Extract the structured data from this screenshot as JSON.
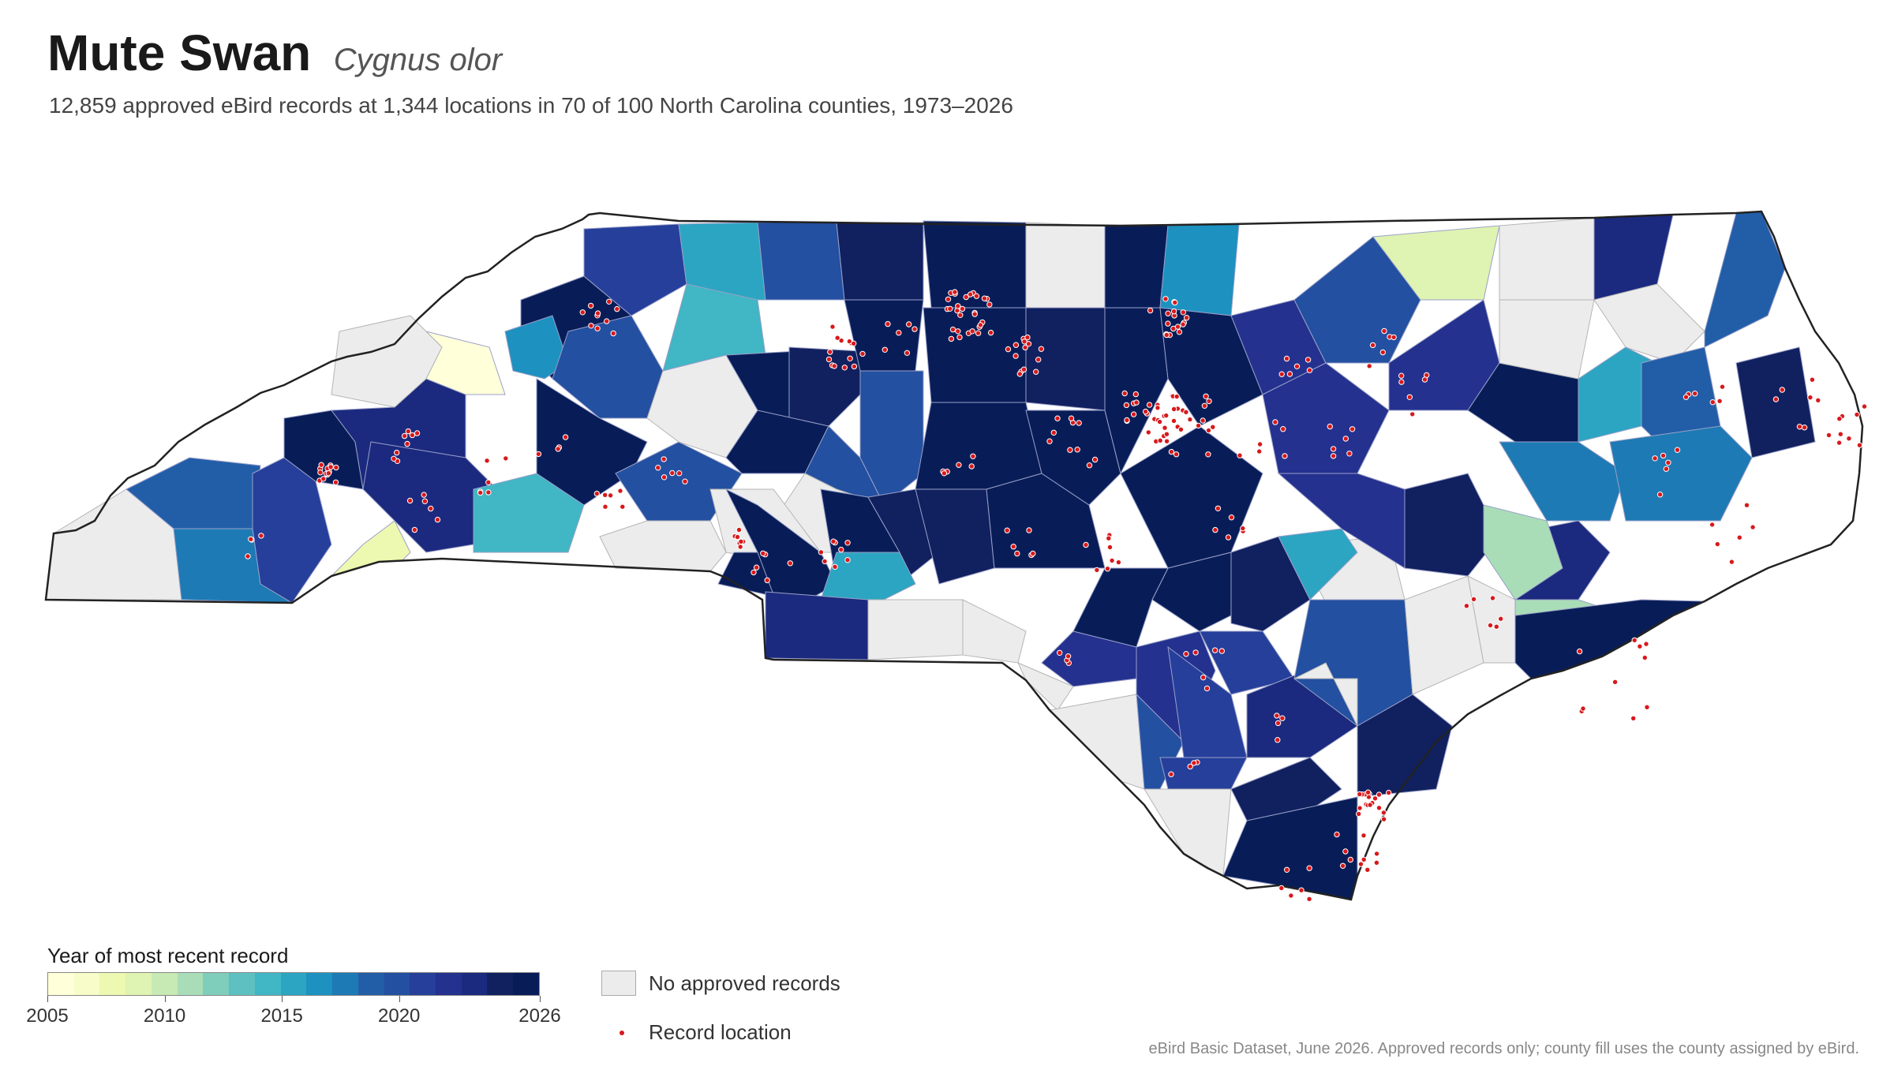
{
  "title": "Mute Swan",
  "scientific_name": "Cygnus olor",
  "subtitle": "12,859 approved eBird records at 1,344 locations in 70 of 100 North Carolina counties, 1973–2026",
  "legend": {
    "title": "Year of most recent record",
    "ticks": [
      "2005",
      "2010",
      "2015",
      "2020",
      "2026"
    ],
    "min_year": 2005,
    "max_year": 2026,
    "no_data_label": "No approved records",
    "record_label": "Record location"
  },
  "colors": {
    "no_data": "#ececec",
    "record_dot": "#d7191c",
    "ramp": [
      "#ffffd9",
      "#f7fcc9",
      "#edf8b1",
      "#dff3b2",
      "#c7e9b4",
      "#a9ddb7",
      "#7fcdbb",
      "#5ec0c0",
      "#41b6c4",
      "#2ca5c2",
      "#1d91c0",
      "#1e7ab4",
      "#225ea8",
      "#2350a1",
      "#253f9b",
      "#24318f",
      "#1b2a7e",
      "#11205f",
      "#081d58"
    ]
  },
  "source": "eBird Basic Dataset, June 2026. Approved records only; county fill uses the county assigned by eBird."
}
